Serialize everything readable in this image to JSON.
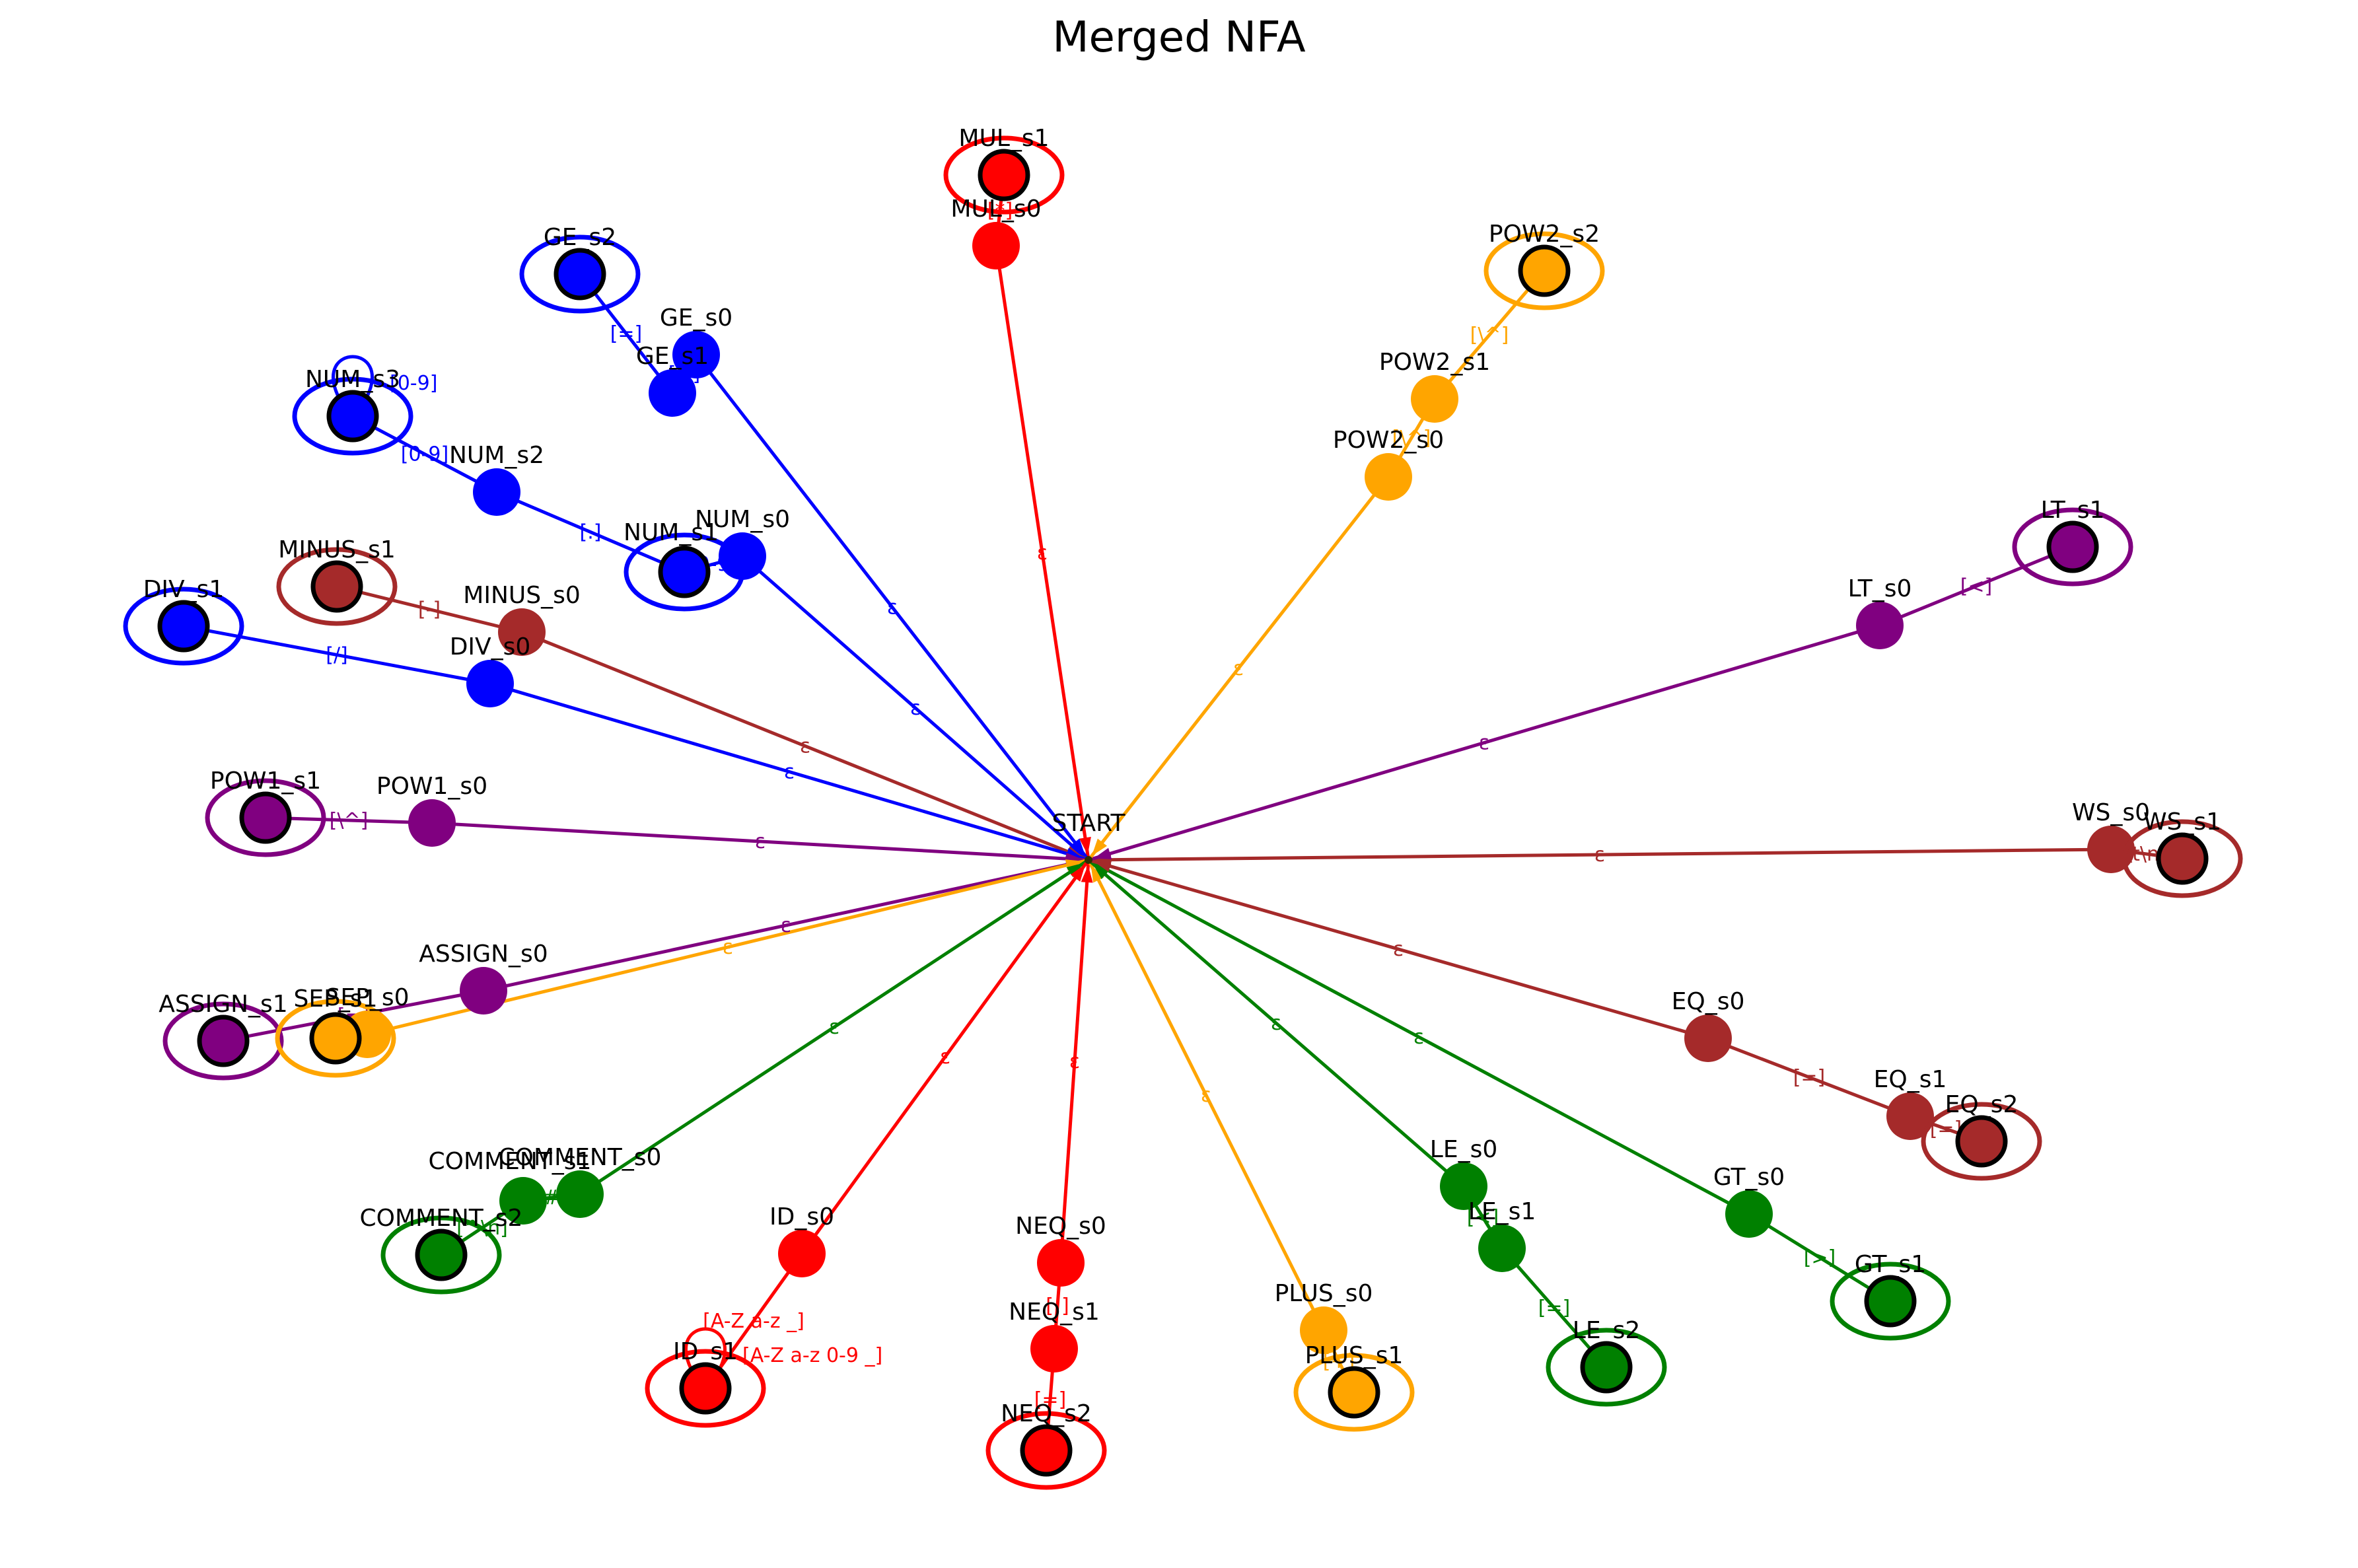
{
  "title": "Merged NFA",
  "start": {
    "label": "START"
  },
  "colors": {
    "MUL": "#ff0000",
    "GE": "#0000ff",
    "NUM": "#0000ff",
    "DIV": "#0000ff",
    "MINUS": "#a52a2a",
    "POW1": "#800080",
    "ASSIGN": "#800080",
    "SEP": "#ffa500",
    "COMMENT": "#008000",
    "ID": "#ff0000",
    "NEQ": "#ff0000",
    "PLUS": "#ffa500",
    "LE": "#008000",
    "GT": "#008000",
    "EQ": "#a52a2a",
    "WS": "#a52a2a",
    "LT": "#800080",
    "POW2": "#ffa500"
  },
  "nodes": [
    {
      "id": "START",
      "label": "START",
      "group": "START",
      "accept": false
    },
    {
      "id": "MUL_s0",
      "label": "MUL_s0",
      "group": "MUL",
      "accept": false
    },
    {
      "id": "MUL_s1",
      "label": "MUL_s1",
      "group": "MUL",
      "accept": true
    },
    {
      "id": "GE_s0",
      "label": "GE_s0",
      "group": "GE",
      "accept": false
    },
    {
      "id": "GE_s1",
      "label": "GE_s1",
      "group": "GE",
      "accept": false
    },
    {
      "id": "GE_s2",
      "label": "GE_s2",
      "group": "GE",
      "accept": true
    },
    {
      "id": "NUM_s0",
      "label": "NUM_s0",
      "group": "NUM",
      "accept": false
    },
    {
      "id": "NUM_s1",
      "label": "NUM_s1",
      "group": "NUM",
      "accept": true
    },
    {
      "id": "NUM_s2",
      "label": "NUM_s2",
      "group": "NUM",
      "accept": false
    },
    {
      "id": "NUM_s3",
      "label": "NUM_s3",
      "group": "NUM",
      "accept": true
    },
    {
      "id": "MINUS_s0",
      "label": "MINUS_s0",
      "group": "MINUS",
      "accept": false
    },
    {
      "id": "MINUS_s1",
      "label": "MINUS_s1",
      "group": "MINUS",
      "accept": true
    },
    {
      "id": "DIV_s0",
      "label": "DIV_s0",
      "group": "DIV",
      "accept": false
    },
    {
      "id": "DIV_s1",
      "label": "DIV_s1",
      "group": "DIV",
      "accept": true
    },
    {
      "id": "POW1_s0",
      "label": "POW1_s0",
      "group": "POW1",
      "accept": false
    },
    {
      "id": "POW1_s1",
      "label": "POW1_s1",
      "group": "POW1",
      "accept": true
    },
    {
      "id": "ASSIGN_s0",
      "label": "ASSIGN_s0",
      "group": "ASSIGN",
      "accept": false
    },
    {
      "id": "ASSIGN_s1",
      "label": "ASSIGN_s1",
      "group": "ASSIGN",
      "accept": true
    },
    {
      "id": "SEP_s0",
      "label": "SEP_s0",
      "group": "SEP",
      "accept": false
    },
    {
      "id": "SEP_s1",
      "label": "SEP_s1",
      "group": "SEP",
      "accept": true
    },
    {
      "id": "COMMENT_s0",
      "label": "COMMENT_s0",
      "group": "COMMENT",
      "accept": false
    },
    {
      "id": "COMMENT_s1",
      "label": "COMMENT_s1",
      "group": "COMMENT",
      "accept": false
    },
    {
      "id": "COMMENT_s2",
      "label": "COMMENT_s2",
      "group": "COMMENT",
      "accept": true
    },
    {
      "id": "ID_s0",
      "label": "ID_s0",
      "group": "ID",
      "accept": false
    },
    {
      "id": "ID_s1",
      "label": "ID_s1",
      "group": "ID",
      "accept": true
    },
    {
      "id": "NEQ_s0",
      "label": "NEQ_s0",
      "group": "NEQ",
      "accept": false
    },
    {
      "id": "NEQ_s1",
      "label": "NEQ_s1",
      "group": "NEQ",
      "accept": false
    },
    {
      "id": "NEQ_s2",
      "label": "NEQ_s2",
      "group": "NEQ",
      "accept": true
    },
    {
      "id": "PLUS_s0",
      "label": "PLUS_s0",
      "group": "PLUS",
      "accept": false
    },
    {
      "id": "PLUS_s1",
      "label": "PLUS_s1",
      "group": "PLUS",
      "accept": true
    },
    {
      "id": "LE_s0",
      "label": "LE_s0",
      "group": "LE",
      "accept": false
    },
    {
      "id": "LE_s1",
      "label": "LE_s1",
      "group": "LE",
      "accept": false
    },
    {
      "id": "LE_s2",
      "label": "LE_s2",
      "group": "LE",
      "accept": true
    },
    {
      "id": "GT_s0",
      "label": "GT_s0",
      "group": "GT",
      "accept": false
    },
    {
      "id": "GT_s1",
      "label": "GT_s1",
      "group": "GT",
      "accept": true
    },
    {
      "id": "EQ_s0",
      "label": "EQ_s0",
      "group": "EQ",
      "accept": false
    },
    {
      "id": "EQ_s1",
      "label": "EQ_s1",
      "group": "EQ",
      "accept": false
    },
    {
      "id": "EQ_s2",
      "label": "EQ_s2",
      "group": "EQ",
      "accept": true
    },
    {
      "id": "WS_s0",
      "label": "WS_s0",
      "group": "WS",
      "accept": false
    },
    {
      "id": "WS_s1",
      "label": "WS_s1",
      "group": "WS",
      "accept": true
    },
    {
      "id": "LT_s0",
      "label": "LT_s0",
      "group": "LT",
      "accept": false
    },
    {
      "id": "LT_s1",
      "label": "LT_s1",
      "group": "LT",
      "accept": true
    },
    {
      "id": "POW2_s0",
      "label": "POW2_s0",
      "group": "POW2",
      "accept": false
    },
    {
      "id": "POW2_s1",
      "label": "POW2_s1",
      "group": "POW2",
      "accept": false
    },
    {
      "id": "POW2_s2",
      "label": "POW2_s2",
      "group": "POW2",
      "accept": true
    }
  ],
  "edges": [
    {
      "from": "START",
      "to": "MUL_s0",
      "label": "ε",
      "group": "MUL"
    },
    {
      "from": "MUL_s0",
      "to": "MUL_s1",
      "label": "[*]",
      "group": "MUL"
    },
    {
      "from": "START",
      "to": "GE_s0",
      "label": "ε",
      "group": "GE"
    },
    {
      "from": "GE_s0",
      "to": "GE_s1",
      "label": "[>]",
      "group": "GE"
    },
    {
      "from": "GE_s1",
      "to": "GE_s2",
      "label": "[=]",
      "group": "GE"
    },
    {
      "from": "START",
      "to": "NUM_s0",
      "label": "ε",
      "group": "NUM"
    },
    {
      "from": "NUM_s0",
      "to": "NUM_s1",
      "label": "[0-9]",
      "group": "NUM"
    },
    {
      "from": "NUM_s1",
      "to": "NUM_s2",
      "label": "[.]",
      "group": "NUM"
    },
    {
      "from": "NUM_s2",
      "to": "NUM_s3",
      "label": "[0-9]",
      "group": "NUM"
    },
    {
      "from": "NUM_s3",
      "to": "NUM_s3",
      "label": "[0-9]",
      "group": "NUM"
    },
    {
      "from": "START",
      "to": "MINUS_s0",
      "label": "ε",
      "group": "MINUS"
    },
    {
      "from": "MINUS_s0",
      "to": "MINUS_s1",
      "label": "[-]",
      "group": "MINUS"
    },
    {
      "from": "START",
      "to": "DIV_s0",
      "label": "ε",
      "group": "DIV"
    },
    {
      "from": "DIV_s0",
      "to": "DIV_s1",
      "label": "[/]",
      "group": "DIV"
    },
    {
      "from": "START",
      "to": "POW1_s0",
      "label": "ε",
      "group": "POW1"
    },
    {
      "from": "POW1_s0",
      "to": "POW1_s1",
      "label": "[\\^]",
      "group": "POW1"
    },
    {
      "from": "START",
      "to": "ASSIGN_s0",
      "label": "ε",
      "group": "ASSIGN"
    },
    {
      "from": "ASSIGN_s0",
      "to": "ASSIGN_s1",
      "label": "[=]",
      "group": "ASSIGN"
    },
    {
      "from": "START",
      "to": "SEP_s0",
      "label": "ε",
      "group": "SEP"
    },
    {
      "from": "SEP_s0",
      "to": "SEP_s1",
      "label": "[;]",
      "group": "SEP"
    },
    {
      "from": "START",
      "to": "COMMENT_s0",
      "label": "ε",
      "group": "COMMENT"
    },
    {
      "from": "COMMENT_s0",
      "to": "COMMENT_s1",
      "label": "[#]",
      "group": "COMMENT"
    },
    {
      "from": "COMMENT_s1",
      "to": "COMMENT_s2",
      "label": "[^\\n]",
      "group": "COMMENT"
    },
    {
      "from": "START",
      "to": "ID_s0",
      "label": "ε",
      "group": "ID"
    },
    {
      "from": "ID_s0",
      "to": "ID_s1",
      "label": "[A-Z a-z _]",
      "group": "ID"
    },
    {
      "from": "ID_s1",
      "to": "ID_s1",
      "label": "[A-Z a-z 0-9 _]",
      "group": "ID"
    },
    {
      "from": "START",
      "to": "NEQ_s0",
      "label": "ε",
      "group": "NEQ"
    },
    {
      "from": "NEQ_s0",
      "to": "NEQ_s1",
      "label": "[!]",
      "group": "NEQ"
    },
    {
      "from": "NEQ_s1",
      "to": "NEQ_s2",
      "label": "[=]",
      "group": "NEQ"
    },
    {
      "from": "START",
      "to": "PLUS_s0",
      "label": "ε",
      "group": "PLUS"
    },
    {
      "from": "PLUS_s0",
      "to": "PLUS_s1",
      "label": "[+]",
      "group": "PLUS"
    },
    {
      "from": "START",
      "to": "LE_s0",
      "label": "ε",
      "group": "LE"
    },
    {
      "from": "LE_s0",
      "to": "LE_s1",
      "label": "[<]",
      "group": "LE"
    },
    {
      "from": "LE_s1",
      "to": "LE_s2",
      "label": "[=]",
      "group": "LE"
    },
    {
      "from": "START",
      "to": "GT_s0",
      "label": "ε",
      "group": "GT"
    },
    {
      "from": "GT_s0",
      "to": "GT_s1",
      "label": "[>]",
      "group": "GT"
    },
    {
      "from": "START",
      "to": "EQ_s0",
      "label": "ε",
      "group": "EQ"
    },
    {
      "from": "EQ_s0",
      "to": "EQ_s1",
      "label": "[=]",
      "group": "EQ"
    },
    {
      "from": "EQ_s1",
      "to": "EQ_s2",
      "label": "[=]",
      "group": "EQ"
    },
    {
      "from": "START",
      "to": "WS_s0",
      "label": "ε",
      "group": "WS"
    },
    {
      "from": "WS_s0",
      "to": "WS_s1",
      "label": "[ \\t\\n\\r]",
      "group": "WS"
    },
    {
      "from": "START",
      "to": "LT_s0",
      "label": "ε",
      "group": "LT"
    },
    {
      "from": "LT_s0",
      "to": "LT_s1",
      "label": "[<]",
      "group": "LT"
    },
    {
      "from": "START",
      "to": "POW2_s0",
      "label": "ε",
      "group": "POW2"
    },
    {
      "from": "POW2_s0",
      "to": "POW2_s1",
      "label": "[\\^]",
      "group": "POW2"
    },
    {
      "from": "POW2_s1",
      "to": "POW2_s2",
      "label": "[\\^]",
      "group": "POW2"
    }
  ]
}
